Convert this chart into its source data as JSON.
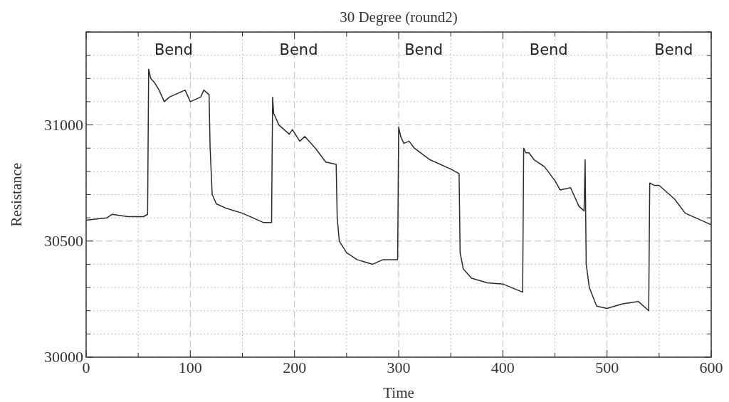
{
  "chart_data": {
    "type": "line",
    "title": "30 Degree (round2)",
    "xlabel": "Time",
    "ylabel": "Resistance",
    "xlim": [
      0,
      600
    ],
    "ylim": [
      30000,
      31400
    ],
    "xticks": [
      0,
      {
        "value": 50,
        "label": null
      },
      100,
      {
        "value": 150,
        "label": null
      },
      200,
      {
        "value": 250,
        "label": null
      },
      300,
      {
        "value": 350,
        "label": null
      },
      400,
      {
        "value": 450,
        "label": null
      },
      500,
      {
        "value": 550,
        "label": null
      },
      600
    ],
    "yticks": [
      30000,
      {
        "value": 30100,
        "label": null
      },
      {
        "value": 30200,
        "label": null
      },
      {
        "value": 30300,
        "label": null
      },
      {
        "value": 30400,
        "label": null
      },
      30500,
      {
        "value": 30600,
        "label": null
      },
      {
        "value": 30700,
        "label": null
      },
      {
        "value": 30800,
        "label": null
      },
      {
        "value": 30900,
        "label": null
      },
      31000,
      {
        "value": 31100,
        "label": null
      },
      {
        "value": 31200,
        "label": null
      },
      {
        "value": 31300,
        "label": null
      },
      {
        "value": 31400,
        "label": null
      }
    ],
    "grid": true,
    "line_style": "solid",
    "marker": "none",
    "annotations": [
      "Bend",
      "Bend",
      "Bend",
      "Bend",
      "Bend"
    ],
    "x": [
      0,
      10,
      20,
      25,
      40,
      55,
      59,
      60,
      62,
      66,
      70,
      75,
      80,
      85,
      95,
      100,
      110,
      113,
      118,
      119,
      121,
      125,
      135,
      150,
      160,
      170,
      178,
      179,
      180,
      185,
      190,
      195,
      198,
      205,
      210,
      220,
      230,
      240,
      241,
      243,
      250,
      260,
      275,
      285,
      299,
      300,
      302,
      305,
      310,
      315,
      330,
      350,
      358,
      359,
      362,
      370,
      385,
      400,
      419,
      420,
      422,
      425,
      430,
      440,
      450,
      455,
      465,
      473,
      478,
      479,
      480,
      483,
      490,
      500,
      515,
      530,
      540,
      541,
      545,
      550,
      555,
      565,
      575,
      585,
      600
    ],
    "series": [
      {
        "color": "#2b2b2b",
        "values": [
          30590,
          30595,
          30600,
          30615,
          30605,
          30605,
          30615,
          31240,
          31200,
          31180,
          31150,
          31100,
          31120,
          31130,
          31150,
          31100,
          31120,
          31150,
          31130,
          30900,
          30700,
          30660,
          30640,
          30620,
          30600,
          30580,
          30580,
          31120,
          31050,
          31000,
          30980,
          30960,
          30980,
          30930,
          30950,
          30900,
          30840,
          30830,
          30600,
          30500,
          30450,
          30420,
          30400,
          30420,
          30420,
          30990,
          30950,
          30920,
          30930,
          30900,
          30850,
          30810,
          30790,
          30450,
          30380,
          30340,
          30320,
          30315,
          30280,
          30900,
          30880,
          30880,
          30850,
          30820,
          30760,
          30720,
          30730,
          30650,
          30630,
          30850,
          30400,
          30300,
          30220,
          30210,
          30230,
          30240,
          30200,
          30750,
          30740,
          30740,
          30720,
          30680,
          30620,
          30600,
          30570
        ]
      }
    ]
  }
}
